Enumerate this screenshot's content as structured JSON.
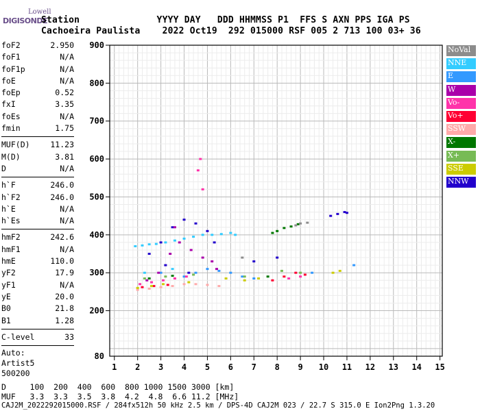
{
  "logo": {
    "line1": "Lowell",
    "line2": "DIGISONDE"
  },
  "header": {
    "line1": "Station              YYYY DAY   DDD HHMMSS P1  FFS S AXN PPS IGA PS",
    "line2": "Cachoeira Paulista    2022 Oct19  292 015000 RSF 005 2 713 100 03+ 36"
  },
  "params_group1": [
    {
      "k": "foF2",
      "v": "2.950"
    },
    {
      "k": "foF1",
      "v": "N/A"
    },
    {
      "k": "foF1p",
      "v": "N/A"
    },
    {
      "k": "foE",
      "v": "N/A"
    },
    {
      "k": "foEp",
      "v": "0.52"
    },
    {
      "k": "fxI",
      "v": "3.35"
    },
    {
      "k": "foEs",
      "v": "N/A"
    },
    {
      "k": "fmin",
      "v": "1.75"
    }
  ],
  "params_group2": [
    {
      "k": "MUF(D)",
      "v": "11.23"
    },
    {
      "k": "M(D)",
      "v": "3.81"
    },
    {
      "k": "D",
      "v": "N/A"
    }
  ],
  "params_group3": [
    {
      "k": "h`F",
      "v": "246.0"
    },
    {
      "k": "h`F2",
      "v": "246.0"
    },
    {
      "k": "h`E",
      "v": "N/A"
    },
    {
      "k": "h`Es",
      "v": "N/A"
    }
  ],
  "params_group4": [
    {
      "k": "hmF2",
      "v": "242.6"
    },
    {
      "k": "hmF1",
      "v": "N/A"
    },
    {
      "k": "hmE",
      "v": "110.0"
    },
    {
      "k": "yF2",
      "v": "17.9"
    },
    {
      "k": "yF1",
      "v": "N/A"
    },
    {
      "k": "yE",
      "v": "20.0"
    },
    {
      "k": "B0",
      "v": "21.8"
    },
    {
      "k": "B1",
      "v": "1.28"
    }
  ],
  "params_group5": [
    {
      "k": "C-level",
      "v": "33"
    }
  ],
  "auto": {
    "l1": "Auto:",
    "l2": "Artist5",
    "l3": "500200"
  },
  "legend": [
    {
      "label": "NoVal",
      "color": "#8c8c8c"
    },
    {
      "label": "NNE",
      "color": "#33ccff"
    },
    {
      "label": "E",
      "color": "#3399ff"
    },
    {
      "label": "W",
      "color": "#aa00aa"
    },
    {
      "label": "Vo-",
      "color": "#ff33aa"
    },
    {
      "label": "Vo+",
      "color": "#ff0033"
    },
    {
      "label": "SSW",
      "color": "#ffaaaa"
    },
    {
      "label": "X-",
      "color": "#007700"
    },
    {
      "label": "X+",
      "color": "#77bb55"
    },
    {
      "label": "SSE",
      "color": "#cccc00"
    },
    {
      "label": "NNW",
      "color": "#2200cc"
    }
  ],
  "footer": {
    "line1": "D     100  200  400  600  800 1000 1500 3000 [km]",
    "line2": "MUF   3.3  3.3  3.5  3.8  4.2  4.8  6.6 11.2 [MHz]",
    "line3": "CAJ2M_2022292015000.RSF / 284fx512h 50 kHz 2.5 km / DPS-4D CAJ2M 023 / 22.7 S 315.0 E Ion2Png 1.3.20"
  },
  "chart_data": {
    "type": "scatter",
    "title": "",
    "xlabel": "",
    "ylabel": "",
    "xlim": [
      0.8,
      15.1
    ],
    "ylim": [
      80,
      900
    ],
    "xticks": [
      1,
      2,
      3,
      4,
      5,
      6,
      7,
      8,
      9,
      10,
      11,
      12,
      13,
      14,
      15
    ],
    "yticks": [
      200,
      300,
      400,
      500,
      600,
      700,
      800,
      900
    ],
    "ytick_labels": [
      "200",
      "300",
      "400",
      "500",
      "600",
      "700",
      "800",
      "900"
    ],
    "extra_ytick": 80,
    "grid": true,
    "legend_position": "right",
    "series": [
      {
        "name": "NNW",
        "color": "#2200cc",
        "points": [
          [
            2.5,
            350
          ],
          [
            3,
            380
          ],
          [
            3.5,
            420
          ],
          [
            4,
            440
          ],
          [
            4.5,
            430
          ],
          [
            5,
            410
          ],
          [
            5.3,
            380
          ],
          [
            4.2,
            300
          ],
          [
            3.2,
            320
          ],
          [
            10.3,
            450
          ],
          [
            10.6,
            455
          ],
          [
            10.9,
            460
          ],
          [
            11,
            458
          ],
          [
            7,
            330
          ],
          [
            8,
            340
          ]
        ]
      },
      {
        "name": "NNE",
        "color": "#33ccff",
        "points": [
          [
            1.9,
            370
          ],
          [
            2.2,
            372
          ],
          [
            2.5,
            375
          ],
          [
            2.8,
            376
          ],
          [
            3.2,
            380
          ],
          [
            3.6,
            385
          ],
          [
            4,
            390
          ],
          [
            4.4,
            395
          ],
          [
            4.8,
            400
          ],
          [
            5.2,
            400
          ],
          [
            5.6,
            402
          ],
          [
            6,
            405
          ],
          [
            6.2,
            400
          ],
          [
            2.3,
            300
          ],
          [
            3.5,
            310
          ]
        ]
      },
      {
        "name": "E",
        "color": "#3399ff",
        "points": [
          [
            4,
            290
          ],
          [
            4.5,
            300
          ],
          [
            5,
            310
          ],
          [
            5.5,
            305
          ],
          [
            6,
            300
          ],
          [
            6.5,
            290
          ],
          [
            7,
            285
          ],
          [
            3,
            300
          ],
          [
            9.5,
            300
          ],
          [
            11.3,
            320
          ]
        ]
      },
      {
        "name": "W",
        "color": "#aa00aa",
        "points": [
          [
            2.4,
            280
          ],
          [
            2.9,
            300
          ],
          [
            3.4,
            350
          ],
          [
            3.8,
            380
          ],
          [
            4.3,
            360
          ],
          [
            4.8,
            340
          ],
          [
            5.2,
            330
          ],
          [
            3.6,
            420
          ],
          [
            5.4,
            310
          ]
        ]
      },
      {
        "name": "Vo-",
        "color": "#ff33aa",
        "points": [
          [
            2.1,
            270
          ],
          [
            2.6,
            275
          ],
          [
            3.1,
            280
          ],
          [
            3.6,
            285
          ],
          [
            4.1,
            290
          ],
          [
            8.5,
            285
          ],
          [
            9,
            290
          ],
          [
            4.7,
            600
          ],
          [
            4.6,
            570
          ],
          [
            4.8,
            520
          ]
        ]
      },
      {
        "name": "Vo+",
        "color": "#ff0033",
        "points": [
          [
            2.2,
            262
          ],
          [
            2.7,
            265
          ],
          [
            3.3,
            268
          ],
          [
            7.8,
            280
          ],
          [
            8.3,
            290
          ],
          [
            8.8,
            300
          ],
          [
            9.2,
            295
          ]
        ]
      },
      {
        "name": "SSW",
        "color": "#ffaaaa",
        "points": [
          [
            2,
            255
          ],
          [
            2.5,
            258
          ],
          [
            3,
            262
          ],
          [
            3.5,
            265
          ],
          [
            4,
            270
          ],
          [
            4.5,
            270
          ],
          [
            5,
            268
          ],
          [
            5.5,
            265
          ]
        ]
      },
      {
        "name": "X-",
        "color": "#007700",
        "points": [
          [
            7.8,
            405
          ],
          [
            8,
            410
          ],
          [
            8.3,
            418
          ],
          [
            8.6,
            422
          ],
          [
            8.9,
            428
          ],
          [
            2.5,
            285
          ],
          [
            3.5,
            292
          ],
          [
            7.6,
            290
          ]
        ]
      },
      {
        "name": "X+",
        "color": "#77bb55",
        "points": [
          [
            2.3,
            285
          ],
          [
            3.2,
            290
          ],
          [
            4.4,
            295
          ],
          [
            6.6,
            290
          ],
          [
            8.2,
            305
          ],
          [
            9,
            300
          ]
        ]
      },
      {
        "name": "SSE",
        "color": "#cccc00",
        "points": [
          [
            2,
            260
          ],
          [
            2.6,
            265
          ],
          [
            3.1,
            270
          ],
          [
            4.2,
            275
          ],
          [
            5.8,
            285
          ],
          [
            6.6,
            280
          ],
          [
            7.2,
            285
          ],
          [
            10.4,
            300
          ],
          [
            10.7,
            305
          ]
        ]
      },
      {
        "name": "NoVal",
        "color": "#8c8c8c",
        "points": [
          [
            9,
            430
          ],
          [
            9.3,
            432
          ],
          [
            8.8,
            425
          ],
          [
            6.5,
            340
          ]
        ]
      }
    ]
  }
}
